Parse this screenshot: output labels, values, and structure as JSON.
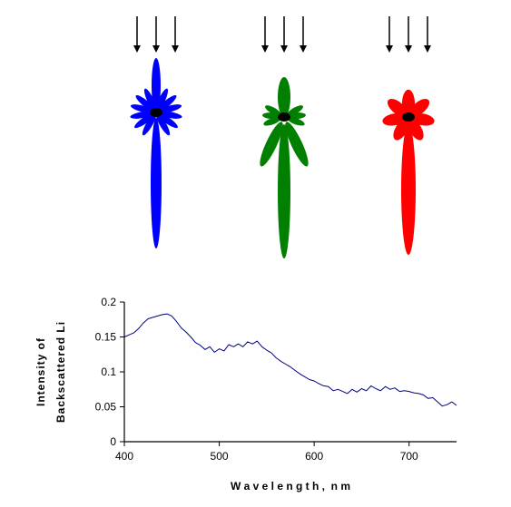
{
  "illustration": {
    "particles": [
      {
        "color": "#0000ff",
        "arrow_count": 3
      },
      {
        "color": "#007f00",
        "arrow_count": 3
      },
      {
        "color": "#ff0000",
        "arrow_count": 3
      }
    ],
    "center_color": "#000000"
  },
  "chart_data": {
    "type": "line",
    "title": "",
    "xlabel": "W a v e l e n g t h ,  n m",
    "ylabel": [
      "Intensity of",
      "Backscattered Li"
    ],
    "xlim": [
      400,
      750
    ],
    "ylim": [
      0,
      0.2
    ],
    "xticks": [
      400,
      500,
      600,
      700
    ],
    "yticks": [
      0,
      0.05,
      0.1,
      0.15,
      0.2
    ],
    "xtick_labels": [
      "400",
      "500",
      "600",
      "700"
    ],
    "ytick_labels": [
      "0",
      "0.05",
      "0.1",
      "0.15",
      "0.2"
    ],
    "grid": false,
    "line_color": "#000080",
    "series": [
      {
        "x": [
          400,
          405,
          410,
          415,
          420,
          425,
          430,
          435,
          440,
          445,
          450,
          455,
          460,
          465,
          470,
          475,
          480,
          485,
          490,
          495,
          500,
          505,
          510,
          515,
          520,
          525,
          530,
          535,
          540,
          545,
          550,
          555,
          560,
          565,
          570,
          575,
          580,
          585,
          590,
          595,
          600,
          605,
          610,
          615,
          620,
          625,
          630,
          635,
          640,
          645,
          650,
          655,
          660,
          665,
          670,
          675,
          680,
          685,
          690,
          695,
          700,
          705,
          710,
          715,
          720,
          725,
          730,
          735,
          740,
          745,
          750
        ],
        "y": [
          0.15,
          0.153,
          0.156,
          0.162,
          0.17,
          0.176,
          0.178,
          0.18,
          0.182,
          0.183,
          0.18,
          0.172,
          0.163,
          0.157,
          0.15,
          0.142,
          0.138,
          0.132,
          0.136,
          0.128,
          0.133,
          0.13,
          0.139,
          0.136,
          0.14,
          0.136,
          0.143,
          0.14,
          0.144,
          0.136,
          0.131,
          0.127,
          0.12,
          0.115,
          0.111,
          0.107,
          0.102,
          0.097,
          0.093,
          0.089,
          0.087,
          0.083,
          0.08,
          0.079,
          0.073,
          0.075,
          0.072,
          0.069,
          0.075,
          0.071,
          0.076,
          0.073,
          0.08,
          0.076,
          0.073,
          0.079,
          0.075,
          0.077,
          0.072,
          0.073,
          0.072,
          0.07,
          0.069,
          0.067,
          0.062,
          0.063,
          0.057,
          0.051,
          0.053,
          0.057,
          0.052
        ]
      }
    ]
  }
}
